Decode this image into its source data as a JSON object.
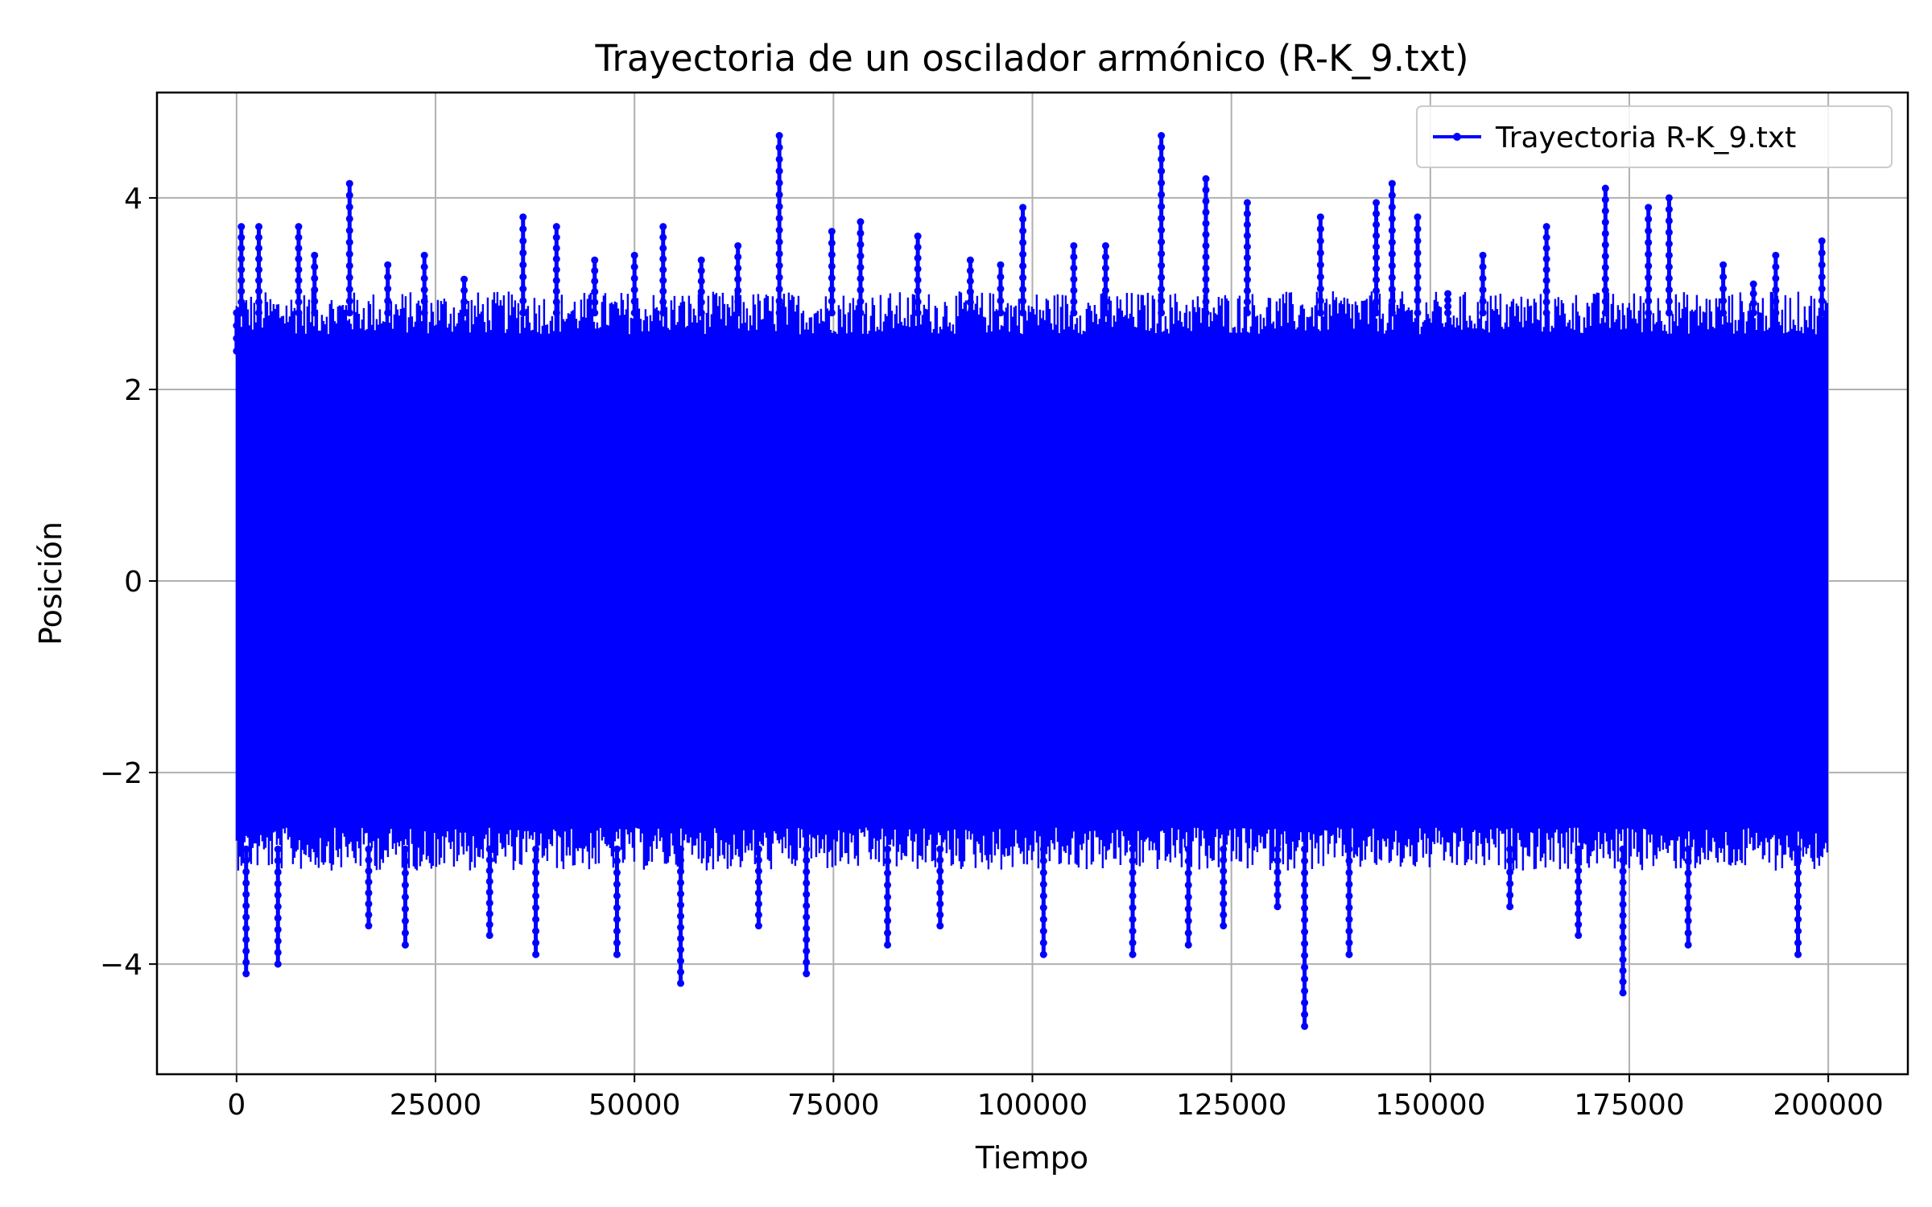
{
  "chart_data": {
    "type": "line",
    "title": "Trayectoria de un oscilador armónico (R-K_9.txt)",
    "xlabel": "Tiempo",
    "ylabel": "Posición",
    "xlim": [
      -10000,
      210000
    ],
    "ylim": [
      -5.15,
      5.1
    ],
    "x_ticks": [
      0,
      25000,
      50000,
      75000,
      100000,
      125000,
      150000,
      175000,
      200000
    ],
    "x_tick_labels": [
      "0",
      "25000",
      "50000",
      "75000",
      "100000",
      "125000",
      "150000",
      "175000",
      "200000"
    ],
    "y_ticks": [
      -4,
      -2,
      0,
      2,
      4
    ],
    "y_tick_labels": [
      "−4",
      "−2",
      "0",
      "2",
      "4"
    ],
    "grid": true,
    "legend_position": "top-right",
    "series": [
      {
        "name": "Trayectoria R-K_9.txt",
        "color": "#0000ff",
        "marker": "circle",
        "x_start": 0,
        "x_end": 200000,
        "typical_range": [
          -2.8,
          2.8
        ],
        "spikes_x": [
          0,
          600,
          1200,
          2800,
          5200,
          7800,
          9800,
          14200,
          16600,
          19000,
          21200,
          23600,
          28600,
          31800,
          36000,
          37600,
          40200,
          45000,
          47800,
          50000,
          53600,
          55800,
          58400,
          63000,
          65600,
          68200,
          71600,
          74800,
          78400,
          81800,
          85600,
          88400,
          92200,
          96000,
          98800,
          101400,
          105200,
          109200,
          112600,
          116200,
          119600,
          121800,
          124000,
          127000,
          130800,
          134200,
          136200,
          139800,
          143200,
          145200,
          148400,
          152200,
          156600,
          160000,
          164600,
          168600,
          172000,
          174200,
          177400,
          180000,
          182400,
          186800,
          190600,
          193400,
          196200,
          199200
        ],
        "spikes_y": [
          2.4,
          3.7,
          -4.1,
          3.7,
          -4.0,
          3.7,
          3.4,
          4.15,
          -3.6,
          3.3,
          -3.8,
          3.4,
          3.15,
          -3.7,
          3.8,
          -3.9,
          3.7,
          3.35,
          -3.9,
          3.4,
          3.7,
          -4.2,
          3.35,
          3.5,
          -3.6,
          4.65,
          -4.1,
          3.65,
          3.75,
          -3.8,
          3.6,
          -3.6,
          3.35,
          3.3,
          3.9,
          -3.9,
          3.5,
          3.5,
          -3.9,
          4.65,
          -3.8,
          4.2,
          -3.6,
          3.95,
          -3.4,
          -4.65,
          3.8,
          -3.9,
          3.95,
          4.15,
          3.8,
          3.0,
          3.4,
          -3.4,
          3.7,
          -3.7,
          4.1,
          -4.3,
          3.9,
          4.0,
          -3.8,
          3.3,
          3.1,
          3.4,
          -3.9,
          3.55
        ]
      }
    ]
  }
}
